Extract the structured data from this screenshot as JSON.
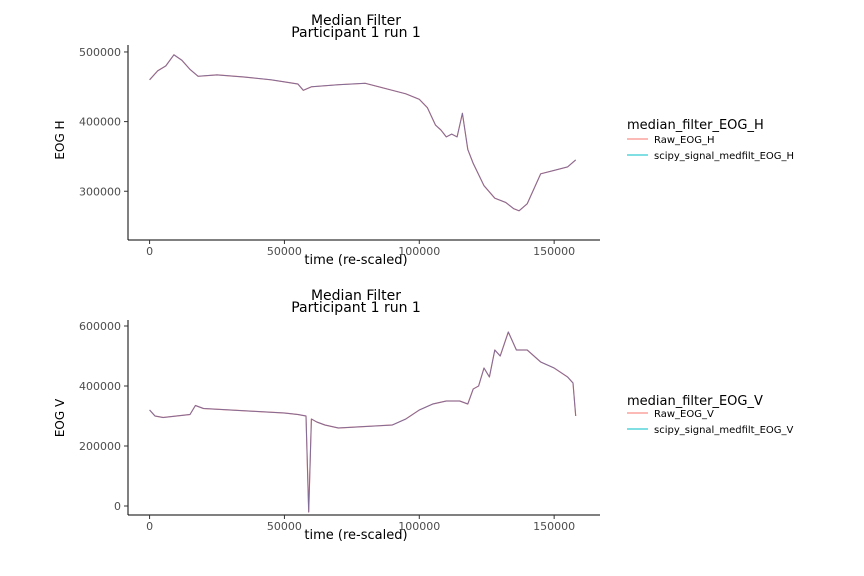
{
  "chart_data": [
    {
      "type": "line",
      "title": "Median Filter",
      "subtitle": "Participant 1 run 1",
      "xlabel": "time (re-scaled)",
      "ylabel": "EOG H",
      "xlim": [
        -8000,
        167000
      ],
      "ylim": [
        230000,
        510000
      ],
      "xticks": [
        0,
        50000,
        100000,
        150000
      ],
      "yticks": [
        300000,
        400000,
        500000
      ],
      "grid": false,
      "legend": {
        "title": "median_filter_EOG_H",
        "placement": "right"
      },
      "series": [
        {
          "name": "Raw_EOG_H",
          "color": "#F8766D",
          "x": [
            0,
            3000,
            6000,
            9000,
            12000,
            15000,
            18000,
            25000,
            35000,
            45000,
            50000,
            55000,
            57000,
            60000,
            70000,
            80000,
            90000,
            95000,
            100000,
            103000,
            106000,
            108000,
            110000,
            112000,
            114000,
            116000,
            118000,
            120000,
            124000,
            128000,
            132000,
            135000,
            137000,
            140000,
            145000,
            150000,
            155000,
            158000
          ],
          "values": [
            460000,
            473000,
            480000,
            496000,
            488000,
            475000,
            465000,
            467000,
            464000,
            460000,
            457000,
            454000,
            445000,
            450000,
            453000,
            455000,
            445000,
            440000,
            432000,
            420000,
            395000,
            388000,
            378000,
            382000,
            378000,
            412000,
            360000,
            340000,
            308000,
            290000,
            284000,
            275000,
            272000,
            282000,
            325000,
            330000,
            335000,
            345000
          ]
        },
        {
          "name": "scipy_signal_medfilt_EOG_H",
          "color": "#00BFC4",
          "x": [
            0,
            3000,
            6000,
            9000,
            12000,
            15000,
            18000,
            25000,
            35000,
            45000,
            50000,
            55000,
            57000,
            60000,
            70000,
            80000,
            90000,
            95000,
            100000,
            103000,
            106000,
            108000,
            110000,
            112000,
            114000,
            116000,
            118000,
            120000,
            124000,
            128000,
            132000,
            135000,
            137000,
            140000,
            145000,
            150000,
            155000,
            158000
          ],
          "values": [
            460000,
            473000,
            480000,
            496000,
            488000,
            475000,
            465000,
            467000,
            464000,
            460000,
            457000,
            454000,
            445000,
            450000,
            453000,
            455000,
            445000,
            440000,
            432000,
            420000,
            395000,
            388000,
            378000,
            382000,
            378000,
            412000,
            360000,
            340000,
            308000,
            290000,
            284000,
            275000,
            272000,
            282000,
            325000,
            330000,
            335000,
            345000
          ]
        }
      ]
    },
    {
      "type": "line",
      "title": "Median Filter",
      "subtitle": "Participant 1 run 1",
      "xlabel": "time (re-scaled)",
      "ylabel": "EOG V",
      "xlim": [
        -8000,
        167000
      ],
      "ylim": [
        -30000,
        620000
      ],
      "xticks": [
        0,
        50000,
        100000,
        150000
      ],
      "yticks": [
        0,
        200000,
        400000,
        600000
      ],
      "grid": false,
      "legend": {
        "title": "median_filter_EOG_V",
        "placement": "right"
      },
      "series": [
        {
          "name": "Raw_EOG_V",
          "color": "#F8766D",
          "x": [
            0,
            2000,
            5000,
            10000,
            15000,
            17000,
            20000,
            30000,
            40000,
            50000,
            55000,
            58000,
            59000,
            60000,
            62000,
            65000,
            70000,
            80000,
            90000,
            95000,
            100000,
            105000,
            110000,
            115000,
            118000,
            120000,
            122000,
            124000,
            126000,
            128000,
            130000,
            133000,
            136000,
            140000,
            145000,
            150000,
            155000,
            157000,
            158000
          ],
          "values": [
            320000,
            300000,
            295000,
            300000,
            305000,
            335000,
            325000,
            320000,
            315000,
            310000,
            305000,
            300000,
            -20000,
            290000,
            280000,
            270000,
            260000,
            265000,
            270000,
            290000,
            320000,
            340000,
            350000,
            350000,
            340000,
            390000,
            400000,
            460000,
            430000,
            520000,
            500000,
            580000,
            520000,
            520000,
            480000,
            460000,
            430000,
            410000,
            300000
          ]
        },
        {
          "name": "scipy_signal_medfilt_EOG_V",
          "color": "#00BFC4",
          "x": [
            0,
            2000,
            5000,
            10000,
            15000,
            17000,
            20000,
            30000,
            40000,
            50000,
            55000,
            58000,
            59000,
            60000,
            62000,
            65000,
            70000,
            80000,
            90000,
            95000,
            100000,
            105000,
            110000,
            115000,
            118000,
            120000,
            122000,
            124000,
            126000,
            128000,
            130000,
            133000,
            136000,
            140000,
            145000,
            150000,
            155000,
            157000,
            158000
          ],
          "values": [
            320000,
            300000,
            295000,
            300000,
            305000,
            335000,
            325000,
            320000,
            315000,
            310000,
            305000,
            300000,
            -20000,
            290000,
            280000,
            270000,
            260000,
            265000,
            270000,
            290000,
            320000,
            340000,
            350000,
            350000,
            340000,
            390000,
            400000,
            460000,
            430000,
            520000,
            500000,
            580000,
            520000,
            520000,
            480000,
            460000,
            430000,
            410000,
            300000
          ]
        }
      ]
    }
  ]
}
